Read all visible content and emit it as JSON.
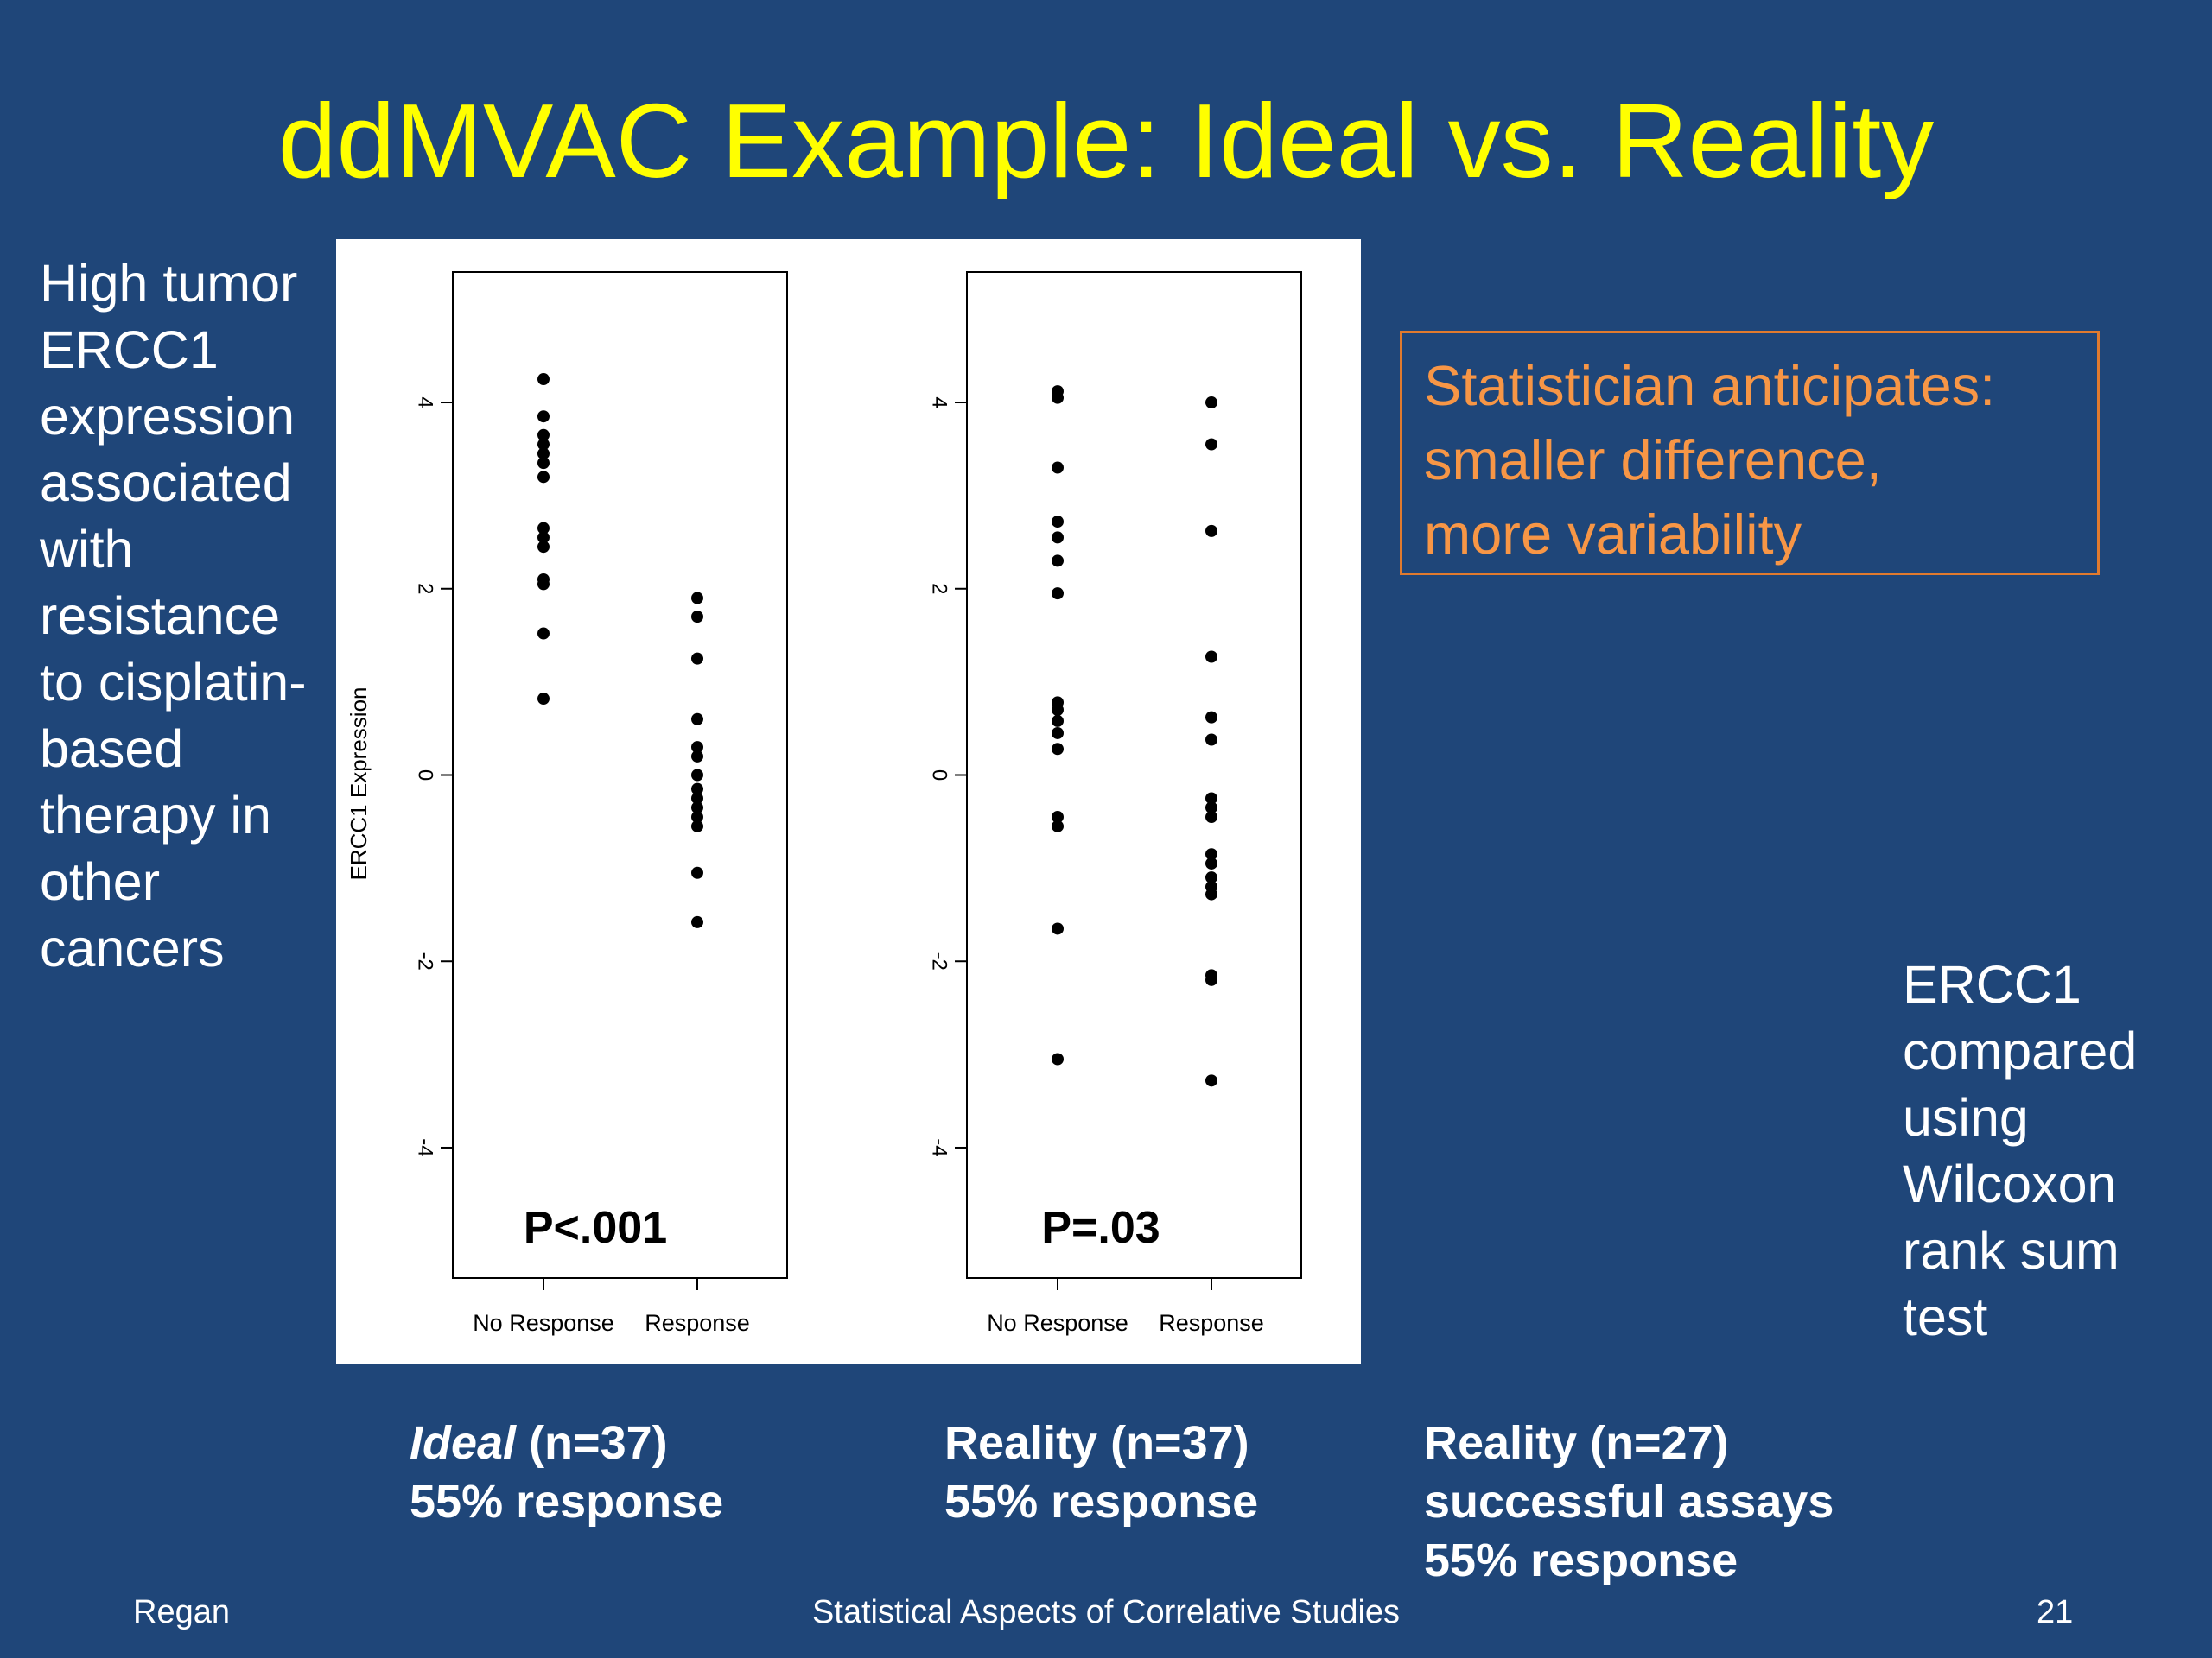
{
  "slide": {
    "title": "ddMVAC Example: Ideal vs. Reality"
  },
  "left_text": {
    "lines": [
      "High tumor",
      "ERCC1",
      "expression",
      "associated",
      "with",
      "resistance",
      "to cisplatin-",
      "based",
      "therapy in",
      "other",
      "cancers"
    ]
  },
  "anticipate_box": {
    "lines": [
      "Statistician anticipates:",
      "smaller difference,",
      "more variability"
    ],
    "border_color": "#e07a2e",
    "text_color": "#f79646"
  },
  "right_text": {
    "lines": [
      "ERCC1",
      "compared",
      "using",
      "Wilcoxon",
      "rank sum",
      "test"
    ]
  },
  "captions": {
    "ideal": {
      "line1_italic": "Ideal",
      "line1_rest": " (n=37)",
      "line2": "55% response"
    },
    "reality37": {
      "line1": "Reality (n=37)",
      "line2": "55% response"
    },
    "reality27": {
      "line1": "Reality (n=27)",
      "line2": "successful assays",
      "line3": "55% response"
    }
  },
  "footer": {
    "left": "Regan",
    "center": "Statistical Aspects of Correlative Studies",
    "right": "21"
  },
  "colors": {
    "background": "#1f4679",
    "title": "#ffff00",
    "text": "#ffffff"
  },
  "chart_data": [
    {
      "type": "scatter",
      "categories": [
        "No Response",
        "Response"
      ],
      "ylabel": "ERCC1 Expression",
      "ylim": [
        -5.4,
        5.4
      ],
      "yticks": [
        -4,
        -2,
        0,
        2,
        4
      ],
      "annotation": "P<.001",
      "series": [
        {
          "category": "No Response",
          "values": [
            4.25,
            3.85,
            3.65,
            3.55,
            3.45,
            3.35,
            3.2,
            2.65,
            2.55,
            2.45,
            2.1,
            2.05,
            1.52,
            0.82
          ]
        },
        {
          "category": "Response",
          "values": [
            1.9,
            1.7,
            1.25,
            0.6,
            0.3,
            0.2,
            0.0,
            -0.15,
            -0.25,
            -0.35,
            -0.45,
            -0.55,
            -1.05,
            -1.58
          ]
        }
      ]
    },
    {
      "type": "scatter",
      "categories": [
        "No Response",
        "Response"
      ],
      "ylabel": "",
      "ylim": [
        -5.4,
        5.4
      ],
      "yticks": [
        -4,
        -2,
        0,
        2,
        4
      ],
      "annotation": "P=.03",
      "series": [
        {
          "category": "No Response",
          "values": [
            4.12,
            4.05,
            3.3,
            2.72,
            2.55,
            2.3,
            1.95,
            0.78,
            0.7,
            0.58,
            0.45,
            0.28,
            -0.45,
            -0.55,
            -1.65,
            -3.05
          ]
        },
        {
          "category": "Response",
          "values": [
            4.0,
            3.55,
            2.62,
            1.27,
            0.62,
            0.38,
            -0.25,
            -0.35,
            -0.45,
            -0.85,
            -0.95,
            -1.1,
            -1.2,
            -1.28,
            -2.15,
            -2.2,
            -3.28
          ]
        }
      ]
    }
  ]
}
